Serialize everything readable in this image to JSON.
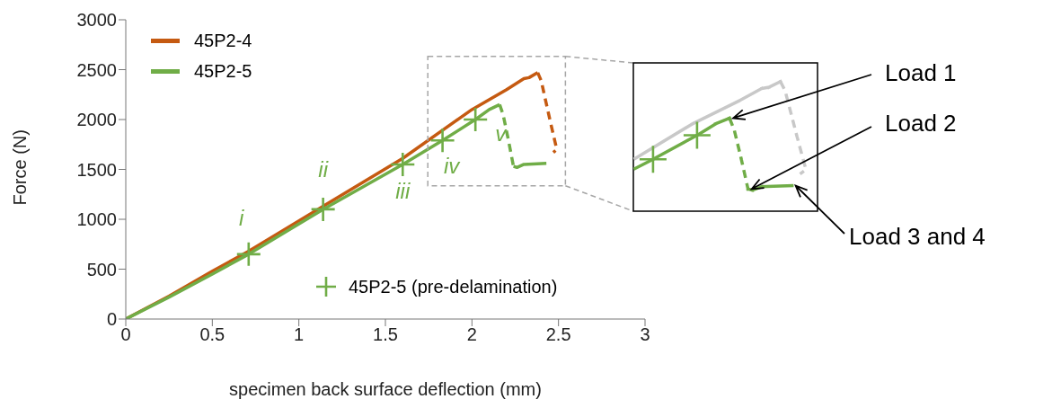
{
  "chart_data": {
    "type": "line",
    "xlabel": "specimen back surface deflection (mm)",
    "ylabel": "Force (N)",
    "xlim": [
      0,
      3
    ],
    "ylim": [
      0,
      3000
    ],
    "xticks": [
      0,
      0.5,
      1,
      1.5,
      2,
      2.5,
      3
    ],
    "yticks": [
      0,
      500,
      1000,
      1500,
      2000,
      2500,
      3000
    ],
    "legend": "top left",
    "marker": "none",
    "series": [
      {
        "name": "45P2-4",
        "color": "#c55a11",
        "line_style": "solid",
        "x": [
          0,
          0.25,
          0.5,
          0.71,
          1.14,
          1.6,
          2.0,
          2.2,
          2.3,
          2.33,
          2.38
        ],
        "values": [
          0,
          230,
          480,
          680,
          1130,
          1610,
          2100,
          2300,
          2410,
          2420,
          2470
        ]
      },
      {
        "color": "#c55a11",
        "line_style": "dashed",
        "x": [
          2.38,
          2.4,
          2.45,
          2.49,
          2.47
        ],
        "values": [
          2470,
          2390,
          2000,
          1700,
          1670
        ]
      },
      {
        "name": "45P2-5",
        "color": "#70ad47",
        "line_style": "solid",
        "x": [
          0,
          0.25,
          0.5,
          0.71,
          1.14,
          1.6,
          1.83,
          2.02,
          2.1,
          2.16
        ],
        "values": [
          0,
          220,
          450,
          650,
          1100,
          1550,
          1790,
          2000,
          2100,
          2150
        ]
      },
      {
        "color": "#70ad47",
        "line_style": "dashed",
        "x": [
          2.16,
          2.18,
          2.21,
          2.24
        ],
        "values": [
          2150,
          2050,
          1800,
          1530
        ]
      },
      {
        "color": "#70ad47",
        "line_style": "solid",
        "x": [
          2.24,
          2.26,
          2.3,
          2.43
        ],
        "values": [
          1530,
          1520,
          1550,
          1560
        ]
      },
      {
        "name": "45P2-5 (pre-delamination)",
        "type": "scatter",
        "marker": "cross",
        "color": "#70ad47",
        "x": [
          0.71,
          1.14,
          1.6,
          1.83,
          2.02
        ],
        "values": [
          650,
          1100,
          1550,
          1790,
          2000
        ]
      }
    ],
    "annotations": [
      "i",
      "ii",
      "iii",
      "iv",
      "v",
      "Load 1",
      "Load 2",
      "Load 3 and 4"
    ]
  }
}
